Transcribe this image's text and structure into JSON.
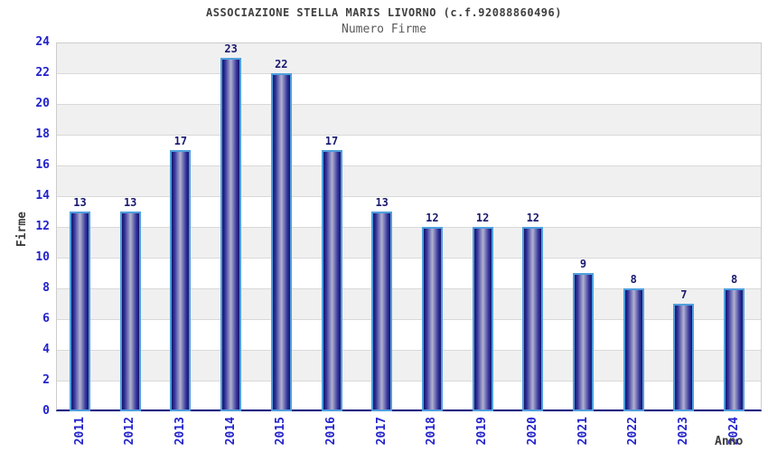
{
  "title": "ASSOCIAZIONE STELLA MARIS LIVORNO (c.f.92088860496)",
  "subtitle": "Numero Firme",
  "chart_data": {
    "type": "bar",
    "title": "ASSOCIAZIONE STELLA MARIS LIVORNO (c.f.92088860496)",
    "subtitle": "Numero Firme",
    "xlabel": "Anno",
    "ylabel": "Firme",
    "categories": [
      "2011",
      "2012",
      "2013",
      "2014",
      "2015",
      "2016",
      "2017",
      "2018",
      "2019",
      "2020",
      "2021",
      "2022",
      "2023",
      "2024"
    ],
    "values": [
      13,
      13,
      17,
      23,
      22,
      17,
      13,
      12,
      12,
      12,
      9,
      8,
      7,
      8
    ],
    "bar_labels": true,
    "ylim": [
      0,
      24
    ],
    "ytick_step": 2,
    "yticks": [
      0,
      2,
      4,
      6,
      8,
      10,
      12,
      14,
      16,
      18,
      20,
      22,
      24
    ],
    "grid": "horizontal",
    "background_bands": "alternating",
    "legend_position": "none",
    "colors": {
      "bar_edge": "#14146a",
      "bar_mid": "#32329b",
      "bar_center": "#b2b2d0",
      "bar_border": "#4f9fdd",
      "axis_line": "#00007e",
      "plot_border": "#cccccc",
      "gridline": "#d9d9d9",
      "band_gray": "#f0f0f0",
      "band_white": "#ffffff",
      "tick_label": "#2222cc",
      "value_label": "#191970",
      "title_color": "#3f3f3f",
      "subtitle_color": "#5a5a5a",
      "axis_title_color": "#3c3c3c"
    }
  }
}
